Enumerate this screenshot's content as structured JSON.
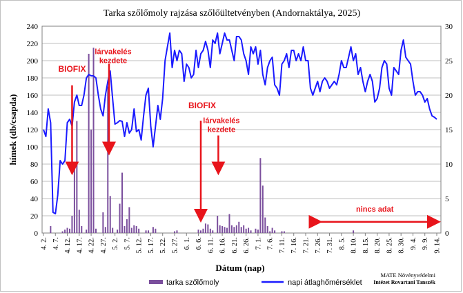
{
  "chart_data": {
    "type": "bar+line",
    "title": "Tarka szőlőmoly rajzása szőlőültetvényben (Andornaktálya, 2025)",
    "xlabel": "Dátum (nap)",
    "ylabel_left": "hímek (db/csapda)",
    "ylim_left": [
      0,
      240
    ],
    "yticks_left": [
      0,
      20,
      40,
      60,
      80,
      100,
      120,
      140,
      160,
      180,
      200,
      220,
      240
    ],
    "ylim_right": [
      0,
      30
    ],
    "yticks_right": [
      0,
      5,
      10,
      15,
      20,
      25,
      30
    ],
    "x_range_days": [
      0,
      165
    ],
    "x_tick_labels": [
      "4. 2.",
      "4. 7.",
      "4. 12.",
      "4. 17.",
      "4. 22.",
      "4. 27.",
      "5. 2.",
      "5. 7.",
      "5. 12.",
      "5. 17.",
      "5. 22.",
      "5. 27.",
      "6. 1.",
      "6. 6.",
      "6. 11.",
      "6. 16.",
      "6. 21.",
      "6. 26.",
      "7. 1.",
      "7. 6.",
      "7. 11.",
      "7. 16.",
      "7. 21.",
      "7. 26.",
      "7. 31.",
      "8. 5.",
      "8. 10.",
      "8. 15.",
      "8. 20.",
      "8. 25.",
      "8. 30.",
      "9. 4.",
      "9. 9.",
      "9. 14."
    ],
    "gridlines": "horizontal",
    "series": [
      {
        "name": "tarka szőlőmoly",
        "type": "bar",
        "axis": "left",
        "color": "#7b4f9d",
        "points": [
          [
            3,
            8
          ],
          [
            8,
            2
          ],
          [
            9,
            4
          ],
          [
            10,
            6
          ],
          [
            11,
            5
          ],
          [
            12,
            20
          ],
          [
            13,
            76
          ],
          [
            14,
            130
          ],
          [
            15,
            27
          ],
          [
            16,
            8
          ],
          [
            18,
            4
          ],
          [
            19,
            208
          ],
          [
            20,
            120
          ],
          [
            21,
            215
          ],
          [
            22,
            5
          ],
          [
            25,
            24
          ],
          [
            26,
            7
          ],
          [
            27,
            170
          ],
          [
            28,
            43
          ],
          [
            29,
            6
          ],
          [
            31,
            4
          ],
          [
            32,
            34
          ],
          [
            33,
            70
          ],
          [
            34,
            8
          ],
          [
            35,
            16
          ],
          [
            36,
            30
          ],
          [
            37,
            6
          ],
          [
            38,
            9
          ],
          [
            39,
            8
          ],
          [
            40,
            5
          ],
          [
            43,
            3
          ],
          [
            44,
            3
          ],
          [
            46,
            7
          ],
          [
            47,
            5
          ],
          [
            55,
            2
          ],
          [
            56,
            3
          ],
          [
            65,
            4
          ],
          [
            66,
            3
          ],
          [
            67,
            5
          ],
          [
            68,
            11
          ],
          [
            69,
            10
          ],
          [
            70,
            5
          ],
          [
            71,
            3
          ],
          [
            73,
            20
          ],
          [
            74,
            9
          ],
          [
            75,
            8
          ],
          [
            76,
            7
          ],
          [
            77,
            6
          ],
          [
            78,
            22
          ],
          [
            79,
            9
          ],
          [
            80,
            7
          ],
          [
            81,
            9
          ],
          [
            82,
            13
          ],
          [
            83,
            7
          ],
          [
            84,
            9
          ],
          [
            85,
            5
          ],
          [
            86,
            6
          ],
          [
            87,
            3
          ],
          [
            89,
            5
          ],
          [
            90,
            4
          ],
          [
            91,
            87
          ],
          [
            92,
            55
          ],
          [
            93,
            18
          ],
          [
            94,
            8
          ],
          [
            95,
            2
          ],
          [
            96,
            6
          ],
          [
            97,
            3
          ],
          [
            100,
            2
          ],
          [
            101,
            2
          ],
          [
            130,
            3
          ]
        ]
      },
      {
        "name": "napi átlaghőmérséklet",
        "type": "line",
        "axis": "right",
        "color": "#1a1aff",
        "points": [
          [
            0,
            15
          ],
          [
            1,
            14
          ],
          [
            2,
            18
          ],
          [
            3,
            16
          ],
          [
            4,
            3
          ],
          [
            5,
            2.8
          ],
          [
            6,
            5.5
          ],
          [
            7,
            10.5
          ],
          [
            8,
            10
          ],
          [
            9,
            10.5
          ],
          [
            10,
            16
          ],
          [
            11,
            16.5
          ],
          [
            12,
            15.5
          ],
          [
            13,
            19
          ],
          [
            14,
            20
          ],
          [
            15,
            18.5
          ],
          [
            16,
            18.5
          ],
          [
            17,
            20
          ],
          [
            18,
            22.5
          ],
          [
            19,
            23
          ],
          [
            20,
            22.8
          ],
          [
            21,
            22.8
          ],
          [
            22,
            22.5
          ],
          [
            23,
            20
          ],
          [
            24,
            18
          ],
          [
            25,
            17
          ],
          [
            26,
            20
          ],
          [
            27,
            22
          ],
          [
            28,
            23.5
          ],
          [
            29,
            19.5
          ],
          [
            30,
            15.8
          ],
          [
            31,
            16
          ],
          [
            32,
            16.3
          ],
          [
            33,
            16.2
          ],
          [
            34,
            14
          ],
          [
            35,
            16
          ],
          [
            36,
            14.5
          ],
          [
            37,
            15
          ],
          [
            38,
            18
          ],
          [
            39,
            14.7
          ],
          [
            40,
            15
          ],
          [
            41,
            13.5
          ],
          [
            42,
            17
          ],
          [
            43,
            20
          ],
          [
            44,
            21
          ],
          [
            45,
            15.5
          ],
          [
            46,
            12.5
          ],
          [
            47,
            15.5
          ],
          [
            48,
            18.5
          ],
          [
            49,
            16.5
          ],
          [
            50,
            19.5
          ],
          [
            51,
            25
          ],
          [
            52,
            27
          ],
          [
            53,
            29
          ],
          [
            54,
            24
          ],
          [
            55,
            26.5
          ],
          [
            56,
            25
          ],
          [
            57,
            26.5
          ],
          [
            58,
            26
          ],
          [
            59,
            22
          ],
          [
            60,
            24.5
          ],
          [
            61,
            24
          ],
          [
            62,
            22.5
          ],
          [
            63,
            23
          ],
          [
            64,
            26.5
          ],
          [
            65,
            24
          ],
          [
            66,
            26
          ],
          [
            67,
            26.5
          ],
          [
            68,
            27.8
          ],
          [
            69,
            26.5
          ],
          [
            70,
            24
          ],
          [
            71,
            28
          ],
          [
            72,
            27.5
          ],
          [
            73,
            29
          ],
          [
            74,
            26
          ],
          [
            75,
            27.5
          ],
          [
            76,
            29
          ],
          [
            77,
            28
          ],
          [
            78,
            28
          ],
          [
            79,
            26.5
          ],
          [
            80,
            25
          ],
          [
            81,
            28.5
          ],
          [
            82,
            28.5
          ],
          [
            83,
            28
          ],
          [
            84,
            26
          ],
          [
            85,
            25
          ],
          [
            86,
            23
          ],
          [
            87,
            27
          ],
          [
            88,
            26
          ],
          [
            89,
            27
          ],
          [
            90,
            24.5
          ],
          [
            91,
            26.5
          ],
          [
            92,
            23
          ],
          [
            93,
            21.5
          ],
          [
            94,
            24
          ],
          [
            95,
            25
          ],
          [
            96,
            25.5
          ],
          [
            97,
            21.5
          ],
          [
            98,
            21
          ],
          [
            99,
            20
          ],
          [
            100,
            24.5
          ],
          [
            101,
            25
          ],
          [
            102,
            26
          ],
          [
            103,
            24
          ],
          [
            104,
            26.5
          ],
          [
            105,
            26.5
          ],
          [
            106,
            25
          ],
          [
            107,
            26
          ],
          [
            108,
            25
          ],
          [
            109,
            27
          ],
          [
            110,
            25
          ],
          [
            111,
            25
          ],
          [
            112,
            21
          ],
          [
            113,
            20
          ],
          [
            114,
            21
          ],
          [
            115,
            22
          ],
          [
            116,
            20.5
          ],
          [
            117,
            22
          ],
          [
            118,
            22.5
          ],
          [
            119,
            22
          ],
          [
            120,
            21
          ],
          [
            121,
            21.5
          ],
          [
            122,
            22
          ],
          [
            123,
            21.5
          ],
          [
            124,
            23
          ],
          [
            125,
            25
          ],
          [
            126,
            24
          ],
          [
            127,
            24
          ],
          [
            128,
            25.5
          ],
          [
            129,
            27
          ],
          [
            130,
            25
          ],
          [
            131,
            26
          ],
          [
            132,
            23
          ],
          [
            133,
            24
          ],
          [
            134,
            22
          ],
          [
            135,
            20.5
          ],
          [
            136,
            22
          ],
          [
            137,
            23
          ],
          [
            138,
            22
          ],
          [
            139,
            19
          ],
          [
            140,
            19.5
          ],
          [
            141,
            21
          ],
          [
            142,
            24
          ],
          [
            143,
            25
          ],
          [
            144,
            24.5
          ],
          [
            145,
            21
          ],
          [
            146,
            20
          ],
          [
            147,
            24
          ],
          [
            148,
            23.5
          ],
          [
            149,
            23
          ],
          [
            150,
            26.5
          ],
          [
            151,
            28
          ],
          [
            152,
            25.5
          ],
          [
            153,
            25
          ],
          [
            154,
            24.5
          ],
          [
            155,
            22
          ],
          [
            156,
            20
          ],
          [
            157,
            20.5
          ],
          [
            158,
            20.5
          ],
          [
            159,
            20
          ],
          [
            160,
            19
          ],
          [
            161,
            19.5
          ],
          [
            162,
            18
          ],
          [
            163,
            17
          ],
          [
            164,
            16.8
          ],
          [
            165,
            16.5
          ]
        ]
      }
    ],
    "annotations": [
      {
        "text": "BIOFIX",
        "day": 12,
        "left_value": 165,
        "arrow_to_left_value": 75
      },
      {
        "text": "lárvakelés kezdete",
        "day": 27.5,
        "left_value": 190,
        "arrow_to_left_value": 98
      },
      {
        "text": "BIOFIX",
        "day": 66,
        "left_value": 132,
        "arrow_to_left_value": 20
      },
      {
        "text": "lárvakelés kezdete",
        "day": 73.5,
        "left_value": 110,
        "arrow_to_left_value": 75
      },
      {
        "text": "nincs adat",
        "day_start": 113,
        "day_end": 165,
        "left_value": 28,
        "arrow_left_value": 13
      }
    ],
    "legend": [
      "tarka szőlőmoly",
      "napi átlaghőmérséklet"
    ],
    "legend_position": "bottom"
  },
  "credit": {
    "line1": "MATE Növényvédelmi",
    "line2": "Intézet Rovartani Tanszék"
  }
}
